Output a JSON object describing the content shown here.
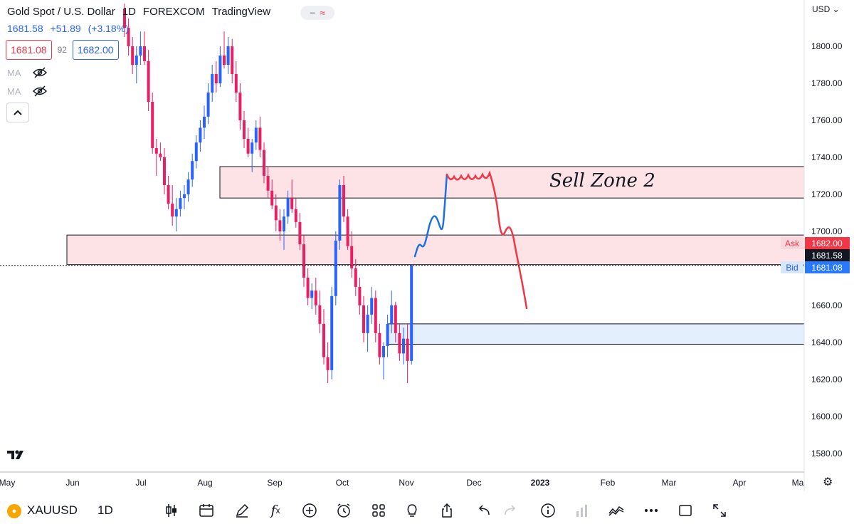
{
  "legend": {
    "symbol_name": "Gold Spot / U.S. Dollar",
    "interval": "1D",
    "exchange": "FOREXCOM",
    "brand": "TradingView",
    "last": "1681.58",
    "change": "+51.89",
    "change_pct": "(+3.18%)",
    "bid": "1681.08",
    "spread": "92",
    "ask": "1682.00",
    "ma_labels": [
      "MA",
      "MA"
    ]
  },
  "price_axis": {
    "currency": "USD",
    "ticks": [
      1800,
      1780,
      1760,
      1740,
      1720,
      1700,
      1660,
      1640,
      1620,
      1600,
      1580
    ],
    "tick_labels": [
      "1800.00",
      "1780.00",
      "1760.00",
      "1740.00",
      "1720.00",
      "1700.00",
      "1660.00",
      "1640.00",
      "1620.00",
      "1600.00",
      "1580.00"
    ],
    "ask_label": "Ask",
    "ask_value": "1682.00",
    "last_value": "1681.58",
    "bid_label": "Bid",
    "bid_value": "1681.08"
  },
  "time_axis": {
    "labels": [
      "May",
      "Jun",
      "Jul",
      "Aug",
      "Sep",
      "Oct",
      "Nov",
      "Dec",
      "2023",
      "Feb",
      "Mar",
      "Apr",
      "Ma"
    ]
  },
  "annotation_text": "Sell Zone 2",
  "zones": [
    {
      "name": "upper-sell-zone",
      "from": 1718,
      "to": 1735,
      "kind": "supply"
    },
    {
      "name": "middle-zone",
      "from": 1682,
      "to": 1698,
      "kind": "supply"
    },
    {
      "name": "lower-demand-zone",
      "from": 1639,
      "to": 1650,
      "kind": "demand"
    }
  ],
  "colors": {
    "up": "#2962ff",
    "down": "#e91e63",
    "supply_fill": "#fde3e5",
    "demand_fill": "#e3effd",
    "drawing_blue": "#1e6fe0",
    "drawing_red": "#f23645"
  },
  "chart_data": {
    "type": "candlestick",
    "symbol": "XAUUSD",
    "interval": "1D",
    "y_range": [
      1573,
      1823
    ],
    "candles_ohlc": [
      [
        1820,
        1823,
        1805,
        1810
      ],
      [
        1810,
        1815,
        1795,
        1800
      ],
      [
        1800,
        1805,
        1785,
        1790
      ],
      [
        1790,
        1800,
        1780,
        1795
      ],
      [
        1795,
        1808,
        1790,
        1800
      ],
      [
        1800,
        1808,
        1790,
        1792
      ],
      [
        1792,
        1798,
        1765,
        1770
      ],
      [
        1770,
        1775,
        1742,
        1745
      ],
      [
        1745,
        1750,
        1730,
        1742
      ],
      [
        1742,
        1748,
        1738,
        1740
      ],
      [
        1740,
        1745,
        1720,
        1725
      ],
      [
        1725,
        1730,
        1712,
        1715
      ],
      [
        1715,
        1725,
        1703,
        1708
      ],
      [
        1708,
        1718,
        1700,
        1712
      ],
      [
        1712,
        1722,
        1708,
        1718
      ],
      [
        1718,
        1725,
        1712,
        1720
      ],
      [
        1720,
        1732,
        1716,
        1728
      ],
      [
        1728,
        1742,
        1724,
        1738
      ],
      [
        1738,
        1752,
        1734,
        1748
      ],
      [
        1748,
        1760,
        1743,
        1756
      ],
      [
        1756,
        1768,
        1750,
        1762
      ],
      [
        1762,
        1780,
        1758,
        1775
      ],
      [
        1775,
        1790,
        1770,
        1785
      ],
      [
        1785,
        1792,
        1775,
        1780
      ],
      [
        1780,
        1800,
        1778,
        1795
      ],
      [
        1795,
        1808,
        1788,
        1790
      ],
      [
        1790,
        1805,
        1785,
        1800
      ],
      [
        1800,
        1804,
        1780,
        1785
      ],
      [
        1785,
        1792,
        1770,
        1775
      ],
      [
        1775,
        1780,
        1755,
        1760
      ],
      [
        1760,
        1765,
        1745,
        1750
      ],
      [
        1750,
        1756,
        1740,
        1742
      ],
      [
        1742,
        1750,
        1732,
        1748
      ],
      [
        1748,
        1760,
        1744,
        1756
      ],
      [
        1756,
        1762,
        1740,
        1744
      ],
      [
        1744,
        1748,
        1726,
        1730
      ],
      [
        1730,
        1735,
        1718,
        1722
      ],
      [
        1722,
        1728,
        1712,
        1714
      ],
      [
        1714,
        1720,
        1700,
        1706
      ],
      [
        1706,
        1712,
        1695,
        1700
      ],
      [
        1700,
        1712,
        1690,
        1708
      ],
      [
        1708,
        1722,
        1704,
        1718
      ],
      [
        1718,
        1728,
        1710,
        1712
      ],
      [
        1712,
        1718,
        1702,
        1705
      ],
      [
        1705,
        1710,
        1690,
        1693
      ],
      [
        1693,
        1698,
        1670,
        1675
      ],
      [
        1675,
        1680,
        1660,
        1664
      ],
      [
        1664,
        1672,
        1658,
        1668
      ],
      [
        1668,
        1675,
        1655,
        1660
      ],
      [
        1660,
        1668,
        1645,
        1650
      ],
      [
        1650,
        1658,
        1628,
        1632
      ],
      [
        1632,
        1640,
        1618,
        1625
      ],
      [
        1625,
        1670,
        1620,
        1665
      ],
      [
        1665,
        1700,
        1660,
        1695
      ],
      [
        1695,
        1728,
        1690,
        1725
      ],
      [
        1725,
        1730,
        1705,
        1708
      ],
      [
        1708,
        1712,
        1690,
        1692
      ],
      [
        1692,
        1700,
        1675,
        1680
      ],
      [
        1680,
        1685,
        1665,
        1670
      ],
      [
        1670,
        1675,
        1655,
        1660
      ],
      [
        1660,
        1665,
        1640,
        1645
      ],
      [
        1645,
        1660,
        1635,
        1655
      ],
      [
        1655,
        1670,
        1650,
        1664
      ],
      [
        1664,
        1668,
        1640,
        1645
      ],
      [
        1645,
        1650,
        1628,
        1632
      ],
      [
        1632,
        1640,
        1620,
        1638
      ],
      [
        1638,
        1655,
        1632,
        1650
      ],
      [
        1650,
        1668,
        1645,
        1660
      ],
      [
        1660,
        1662,
        1640,
        1645
      ],
      [
        1645,
        1650,
        1630,
        1634
      ],
      [
        1634,
        1648,
        1628,
        1642
      ],
      [
        1642,
        1650,
        1618,
        1630
      ],
      [
        1630,
        1682,
        1628,
        1681.58
      ]
    ]
  }
}
